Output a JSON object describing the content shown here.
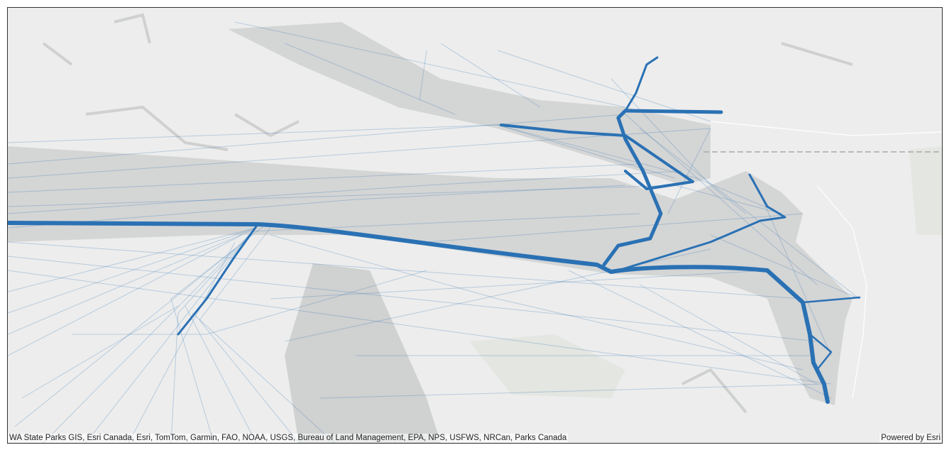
{
  "map": {
    "attribution": "WA State Parks GIS, Esri Canada, Esri, TomTom, Garmin, FAO, NOAA, USGS, Bureau of Land Management, EPA, NPS, USFWS, NRCan, Parks Canada",
    "credit": "Powered by Esri"
  }
}
